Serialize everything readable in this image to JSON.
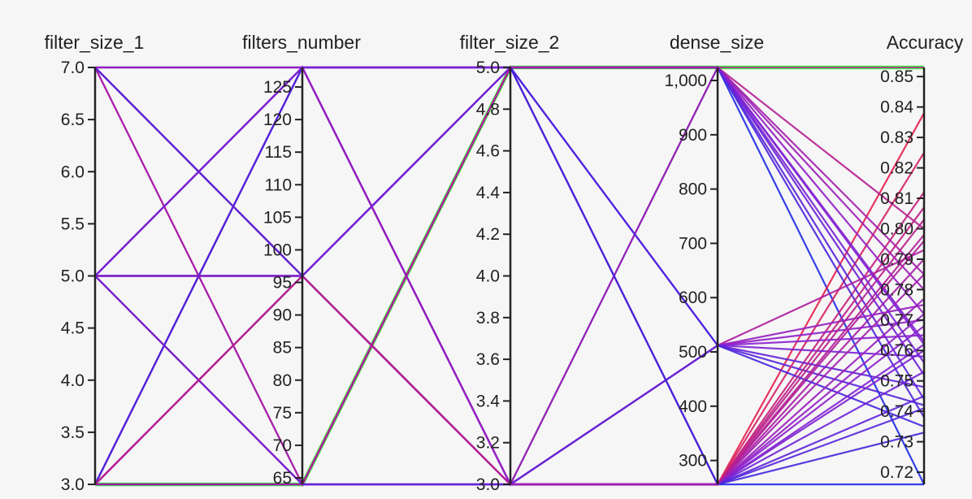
{
  "chart_data": {
    "type": "parallel_coordinates",
    "axes": [
      {
        "name": "filter_size_1",
        "range": [
          3.0,
          7.0
        ],
        "ticks": [
          3.0,
          3.5,
          4.0,
          4.5,
          5.0,
          5.5,
          6.0,
          6.5,
          7.0
        ],
        "tick_labels": [
          "3.0",
          "3.5",
          "4.0",
          "4.5",
          "5.0",
          "5.5",
          "6.0",
          "6.5",
          "7.0"
        ]
      },
      {
        "name": "filters_number",
        "range": [
          64,
          128
        ],
        "ticks": [
          65,
          70,
          75,
          80,
          85,
          90,
          95,
          100,
          105,
          110,
          115,
          120,
          125
        ],
        "tick_labels": [
          "65",
          "70",
          "75",
          "80",
          "85",
          "90",
          "95",
          "100",
          "105",
          "110",
          "115",
          "120",
          "125"
        ]
      },
      {
        "name": "filter_size_2",
        "range": [
          3.0,
          5.0
        ],
        "ticks": [
          3.0,
          3.2,
          3.4,
          3.6,
          3.8,
          4.0,
          4.2,
          4.4,
          4.6,
          4.8,
          5.0
        ],
        "tick_labels": [
          "3.0",
          "3.2",
          "3.4",
          "3.6",
          "3.8",
          "4.0",
          "4.2",
          "4.4",
          "4.6",
          "4.8",
          "5.0"
        ]
      },
      {
        "name": "dense_size",
        "range": [
          256,
          1024
        ],
        "ticks": [
          300,
          400,
          500,
          600,
          700,
          800,
          900,
          1000
        ],
        "tick_labels": [
          "300",
          "400",
          "500",
          "600",
          "700",
          "800",
          "900",
          "1,000"
        ]
      },
      {
        "name": "Accuracy",
        "range": [
          0.716,
          0.853
        ],
        "ticks": [
          0.72,
          0.73,
          0.74,
          0.75,
          0.76,
          0.77,
          0.78,
          0.79,
          0.8,
          0.81,
          0.82,
          0.83,
          0.84,
          0.85
        ],
        "tick_labels": [
          "0.72",
          "0.73",
          "0.74",
          "0.75",
          "0.76",
          "0.77",
          "0.78",
          "0.79",
          "0.80",
          "0.81",
          "0.82",
          "0.83",
          "0.84",
          "0.85"
        ]
      }
    ],
    "color_scale": {
      "low": "#1f2be6",
      "mid": "#8a1fd0",
      "high": "#e8204a",
      "best": "#44ee44"
    },
    "highlighted_row": [
      3,
      64,
      5,
      1024,
      0.853
    ],
    "rows": [
      [
        3,
        64,
        5,
        1024,
        0.853
      ],
      [
        7,
        128,
        3,
        1024,
        0.716
      ],
      [
        7,
        96,
        3,
        256,
        0.716
      ],
      [
        7,
        64,
        5,
        256,
        0.838
      ],
      [
        5,
        128,
        3,
        256,
        0.812
      ],
      [
        5,
        96,
        5,
        512,
        0.742
      ],
      [
        5,
        64,
        3,
        256,
        0.825
      ],
      [
        3,
        128,
        5,
        256,
        0.79
      ],
      [
        3,
        96,
        3,
        512,
        0.77
      ],
      [
        7,
        96,
        5,
        1024,
        0.8
      ],
      [
        5,
        96,
        3,
        1024,
        0.785
      ],
      [
        7,
        64,
        5,
        1024,
        0.78
      ],
      [
        3,
        128,
        3,
        256,
        0.76
      ],
      [
        3,
        128,
        5,
        1024,
        0.763
      ],
      [
        5,
        128,
        5,
        1024,
        0.752
      ],
      [
        7,
        96,
        5,
        1024,
        0.744
      ],
      [
        3,
        96,
        5,
        1024,
        0.738
      ],
      [
        5,
        64,
        5,
        1024,
        0.772
      ],
      [
        3,
        96,
        3,
        256,
        0.803
      ],
      [
        7,
        96,
        3,
        256,
        0.796
      ],
      [
        5,
        64,
        3,
        512,
        0.793
      ],
      [
        3,
        128,
        3,
        512,
        0.775
      ],
      [
        3,
        96,
        5,
        512,
        0.765
      ],
      [
        5,
        128,
        3,
        512,
        0.758
      ],
      [
        3,
        64,
        3,
        512,
        0.748
      ],
      [
        3,
        128,
        5,
        512,
        0.735
      ],
      [
        7,
        96,
        3,
        256,
        0.785
      ],
      [
        5,
        96,
        3,
        256,
        0.772
      ],
      [
        3,
        96,
        3,
        256,
        0.768
      ],
      [
        7,
        128,
        3,
        256,
        0.762
      ],
      [
        5,
        64,
        3,
        256,
        0.753
      ],
      [
        3,
        64,
        3,
        256,
        0.745
      ],
      [
        7,
        96,
        5,
        256,
        0.741
      ],
      [
        5,
        128,
        5,
        256,
        0.733
      ],
      [
        3,
        96,
        3,
        256,
        0.807
      ],
      [
        5,
        96,
        3,
        256,
        0.798
      ],
      [
        7,
        128,
        3,
        256,
        0.777
      ],
      [
        5,
        128,
        5,
        1024,
        0.762
      ],
      [
        5,
        96,
        5,
        1024,
        0.756
      ]
    ]
  }
}
